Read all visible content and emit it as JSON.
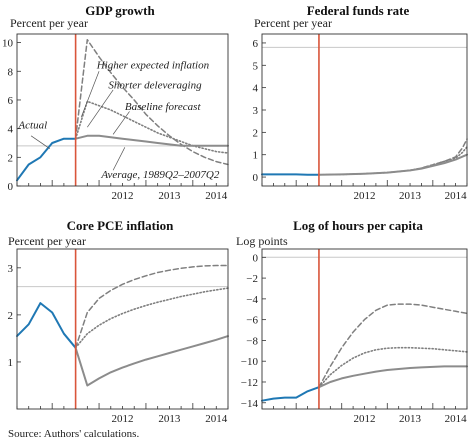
{
  "source": "Source: Authors' calculations.",
  "colors": {
    "actual": "#1f78b4",
    "vline": "#d9553a",
    "baseline": "#8c8c8c",
    "scenario": "#7f7f7f",
    "refline": "#c8c8c8",
    "frame": "#333333"
  },
  "chart_data": [
    {
      "type": "line",
      "title": "GDP growth",
      "ylabel": "Percent per year",
      "ylim": [
        0,
        10.6
      ],
      "yticks": [
        0,
        2,
        4,
        6,
        8,
        10
      ],
      "xlim": [
        2010.25,
        2014.75
      ],
      "xtick_labels": [
        "2012",
        "2013",
        "2014"
      ],
      "reference_line": 2.8,
      "vertical_marker": 2011.5,
      "series": [
        {
          "name": "Actual",
          "style": "actual",
          "x": [
            2010.25,
            2010.5,
            2010.75,
            2011.0,
            2011.25,
            2011.5
          ],
          "y": [
            0.4,
            1.5,
            2.0,
            3.0,
            3.3,
            3.3
          ]
        },
        {
          "name": "Higher expected inflation",
          "style": "dash",
          "x": [
            2011.5,
            2011.75,
            2012.0,
            2012.25,
            2012.5,
            2012.75,
            2013.0,
            2013.25,
            2013.5,
            2013.75,
            2014.0,
            2014.25,
            2014.5,
            2014.75
          ],
          "y": [
            3.3,
            10.2,
            9.0,
            7.9,
            6.9,
            6.0,
            5.0,
            4.2,
            3.5,
            2.9,
            2.4,
            2.0,
            1.7,
            1.5
          ]
        },
        {
          "name": "Shorter deleveraging",
          "style": "dot",
          "x": [
            2011.5,
            2011.75,
            2012.0,
            2012.25,
            2012.5,
            2012.75,
            2013.0,
            2013.25,
            2013.5,
            2013.75,
            2014.0,
            2014.25,
            2014.5,
            2014.75
          ],
          "y": [
            3.3,
            5.9,
            5.6,
            5.3,
            4.9,
            4.5,
            4.1,
            3.7,
            3.4,
            3.1,
            2.8,
            2.6,
            2.4,
            2.3
          ]
        },
        {
          "name": "Baseline forecast",
          "style": "solid",
          "x": [
            2011.5,
            2011.75,
            2012.0,
            2012.25,
            2012.5,
            2012.75,
            2013.0,
            2013.25,
            2013.5,
            2013.75,
            2014.0,
            2014.25,
            2014.5,
            2014.75
          ],
          "y": [
            3.3,
            3.5,
            3.5,
            3.4,
            3.3,
            3.2,
            3.1,
            3.0,
            2.9,
            2.8,
            2.8,
            2.8,
            2.8,
            2.8
          ]
        }
      ],
      "annotations": [
        {
          "text": "Higher expected inflation",
          "x": 2011.95,
          "y": 8.2,
          "anchor": "start"
        },
        {
          "text": "Shorter deleveraging",
          "x": 2012.2,
          "y": 6.8,
          "anchor": "start"
        },
        {
          "text": "Baseline forecast",
          "x": 2012.55,
          "y": 5.3,
          "anchor": "start"
        },
        {
          "text": "Actual",
          "x": 2010.28,
          "y": 4.0,
          "anchor": "start"
        },
        {
          "text": "Average, 1989Q2–2007Q2",
          "x": 2012.05,
          "y": 0.55,
          "anchor": "start"
        }
      ],
      "annotation_leaders": [
        {
          "from": [
            2012.0,
            8.0
          ],
          "to": [
            2011.62,
            4.8
          ]
        },
        {
          "from": [
            2012.3,
            6.7
          ],
          "to": [
            2011.75,
            4.1
          ]
        },
        {
          "from": [
            2012.65,
            5.2
          ],
          "to": [
            2012.3,
            3.6
          ]
        },
        {
          "from": [
            2010.55,
            3.5
          ],
          "to": [
            2010.95,
            2.6
          ]
        },
        {
          "from": [
            2012.3,
            1.1
          ],
          "to": [
            2012.55,
            2.7
          ]
        }
      ]
    },
    {
      "type": "line",
      "title": "Federal funds rate",
      "ylabel": "Percent per year",
      "ylim": [
        -0.4,
        6.4
      ],
      "yticks": [
        0,
        1,
        2,
        3,
        4,
        5,
        6
      ],
      "xlim": [
        2010.25,
        2014.75
      ],
      "xtick_labels": [
        "2012",
        "2013",
        "2014"
      ],
      "reference_line": 5.8,
      "vertical_marker": 2011.5,
      "series": [
        {
          "name": "Actual",
          "style": "actual",
          "x": [
            2010.25,
            2010.5,
            2010.75,
            2011.0,
            2011.25,
            2011.5
          ],
          "y": [
            0.12,
            0.12,
            0.12,
            0.12,
            0.1,
            0.1
          ]
        },
        {
          "name": "Higher expected inflation",
          "style": "dash",
          "x": [
            2011.5,
            2012.0,
            2012.5,
            2013.0,
            2013.5,
            2013.75,
            2014.0,
            2014.25,
            2014.5,
            2014.65,
            2014.75
          ],
          "y": [
            0.1,
            0.12,
            0.15,
            0.2,
            0.3,
            0.4,
            0.55,
            0.7,
            0.9,
            1.3,
            1.7
          ]
        },
        {
          "name": "Shorter deleveraging",
          "style": "dot",
          "x": [
            2011.5,
            2012.0,
            2012.5,
            2013.0,
            2013.5,
            2013.75,
            2014.0,
            2014.25,
            2014.5,
            2014.65,
            2014.75
          ],
          "y": [
            0.1,
            0.12,
            0.15,
            0.2,
            0.3,
            0.4,
            0.55,
            0.7,
            0.85,
            1.1,
            1.35
          ]
        },
        {
          "name": "Baseline forecast",
          "style": "solid",
          "x": [
            2011.5,
            2012.0,
            2012.5,
            2013.0,
            2013.5,
            2013.75,
            2014.0,
            2014.25,
            2014.5,
            2014.75
          ],
          "y": [
            0.1,
            0.12,
            0.15,
            0.2,
            0.3,
            0.38,
            0.5,
            0.62,
            0.78,
            1.0
          ]
        }
      ],
      "annotations": [],
      "annotation_leaders": []
    },
    {
      "type": "line",
      "title": "Core PCE inflation",
      "ylabel": "Percent per year",
      "ylim": [
        0,
        3.4
      ],
      "yticks": [
        1,
        2,
        3
      ],
      "xlim": [
        2010.25,
        2014.75
      ],
      "xtick_labels": [
        "2012",
        "2013",
        "2014"
      ],
      "reference_line": 2.6,
      "vertical_marker": 2011.5,
      "series": [
        {
          "name": "Actual",
          "style": "actual",
          "x": [
            2010.25,
            2010.5,
            2010.75,
            2011.0,
            2011.25,
            2011.5
          ],
          "y": [
            1.55,
            1.8,
            2.25,
            2.05,
            1.6,
            1.3
          ]
        },
        {
          "name": "Higher expected inflation",
          "style": "dash",
          "x": [
            2011.5,
            2011.75,
            2012.0,
            2012.25,
            2012.5,
            2012.75,
            2013.0,
            2013.25,
            2013.5,
            2013.75,
            2014.0,
            2014.25,
            2014.5,
            2014.75
          ],
          "y": [
            1.3,
            2.05,
            2.35,
            2.52,
            2.65,
            2.75,
            2.83,
            2.9,
            2.95,
            2.99,
            3.02,
            3.04,
            3.05,
            3.05
          ]
        },
        {
          "name": "Shorter deleveraging",
          "style": "dot",
          "x": [
            2011.5,
            2011.75,
            2012.0,
            2012.25,
            2012.5,
            2012.75,
            2013.0,
            2013.25,
            2013.5,
            2013.75,
            2014.0,
            2014.25,
            2014.5,
            2014.75
          ],
          "y": [
            1.3,
            1.6,
            1.78,
            1.92,
            2.03,
            2.12,
            2.2,
            2.27,
            2.33,
            2.39,
            2.44,
            2.49,
            2.53,
            2.57
          ]
        },
        {
          "name": "Baseline forecast",
          "style": "solid",
          "x": [
            2011.5,
            2011.75,
            2012.0,
            2012.25,
            2012.5,
            2012.75,
            2013.0,
            2013.25,
            2013.5,
            2013.75,
            2014.0,
            2014.25,
            2014.5,
            2014.75
          ],
          "y": [
            1.3,
            0.5,
            0.65,
            0.78,
            0.88,
            0.97,
            1.05,
            1.12,
            1.19,
            1.26,
            1.33,
            1.4,
            1.47,
            1.55
          ]
        }
      ],
      "annotations": [],
      "annotation_leaders": []
    },
    {
      "type": "line",
      "title": "Log of hours per capita",
      "ylabel": "Log points",
      "ylim": [
        -14.6,
        0.8
      ],
      "yticks": [
        0,
        -2,
        -4,
        -6,
        -8,
        -10,
        -12,
        -14
      ],
      "xlim": [
        2010.25,
        2014.75
      ],
      "xtick_labels": [
        "2012",
        "2013",
        "2014"
      ],
      "reference_line": 0,
      "vertical_marker": 2011.5,
      "series": [
        {
          "name": "Actual",
          "style": "actual",
          "x": [
            2010.25,
            2010.5,
            2010.75,
            2011.0,
            2011.25,
            2011.5
          ],
          "y": [
            -13.8,
            -13.6,
            -13.5,
            -13.5,
            -12.9,
            -12.5
          ]
        },
        {
          "name": "Higher expected inflation",
          "style": "dash",
          "x": [
            2011.5,
            2011.75,
            2012.0,
            2012.25,
            2012.5,
            2012.75,
            2013.0,
            2013.25,
            2013.5,
            2013.75,
            2014.0,
            2014.25,
            2014.5,
            2014.75
          ],
          "y": [
            -12.5,
            -10.5,
            -8.7,
            -7.2,
            -6.0,
            -5.1,
            -4.6,
            -4.5,
            -4.5,
            -4.6,
            -4.8,
            -5.0,
            -5.2,
            -5.4
          ]
        },
        {
          "name": "Shorter deleveraging",
          "style": "dot",
          "x": [
            2011.5,
            2011.75,
            2012.0,
            2012.25,
            2012.5,
            2012.75,
            2013.0,
            2013.25,
            2013.5,
            2013.75,
            2014.0,
            2014.25,
            2014.5,
            2014.75
          ],
          "y": [
            -12.5,
            -11.3,
            -10.4,
            -9.7,
            -9.2,
            -8.9,
            -8.75,
            -8.7,
            -8.7,
            -8.75,
            -8.8,
            -8.9,
            -9.0,
            -9.1
          ]
        },
        {
          "name": "Baseline forecast",
          "style": "solid",
          "x": [
            2011.5,
            2011.75,
            2012.0,
            2012.25,
            2012.5,
            2012.75,
            2013.0,
            2013.25,
            2013.5,
            2013.75,
            2014.0,
            2014.25,
            2014.5,
            2014.75
          ],
          "y": [
            -12.5,
            -12.0,
            -11.65,
            -11.4,
            -11.2,
            -11.0,
            -10.85,
            -10.75,
            -10.65,
            -10.6,
            -10.55,
            -10.5,
            -10.5,
            -10.5
          ]
        }
      ],
      "annotations": [],
      "annotation_leaders": []
    }
  ]
}
